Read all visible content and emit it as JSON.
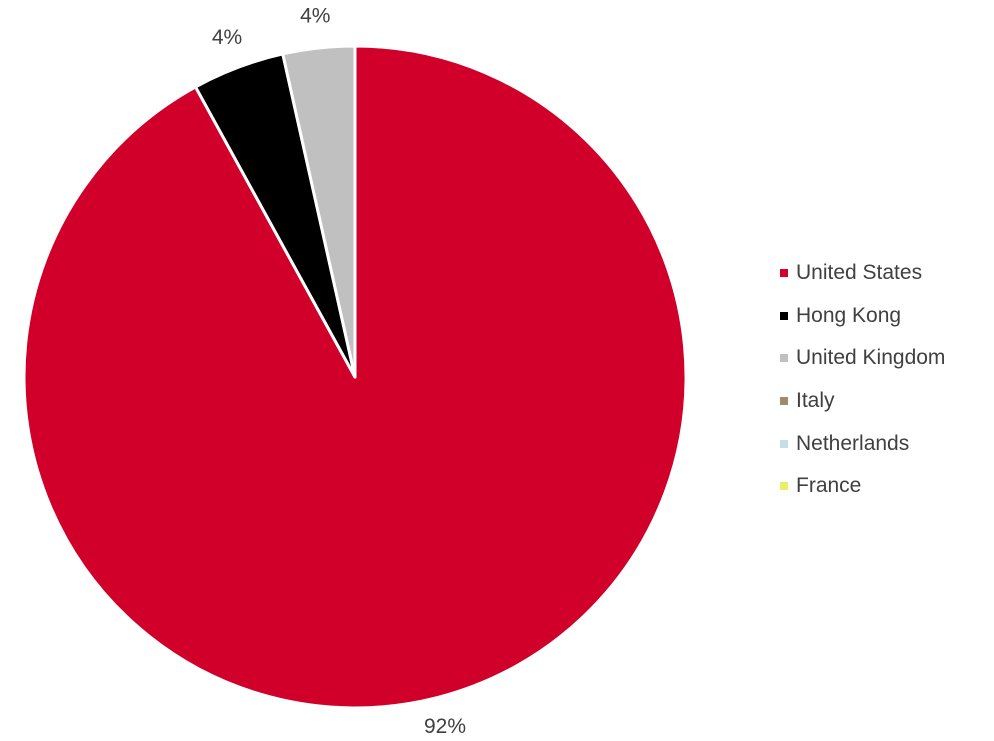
{
  "chart_data": {
    "type": "pie",
    "categories": [
      "United States",
      "Hong Kong",
      "United Kingdom",
      "Italy",
      "Netherlands",
      "France"
    ],
    "values": [
      92,
      4.5,
      3.5,
      0,
      0,
      0
    ],
    "data_labels": [
      "92%",
      "4%",
      "4%",
      "",
      "",
      ""
    ],
    "colors": [
      "#d0002a",
      "#000000",
      "#c0c0c0",
      "#9c8b6c",
      "#c5dde4",
      "#e8f06a"
    ],
    "legend_position": "right",
    "start_angle_deg": 0,
    "direction": "clockwise"
  }
}
